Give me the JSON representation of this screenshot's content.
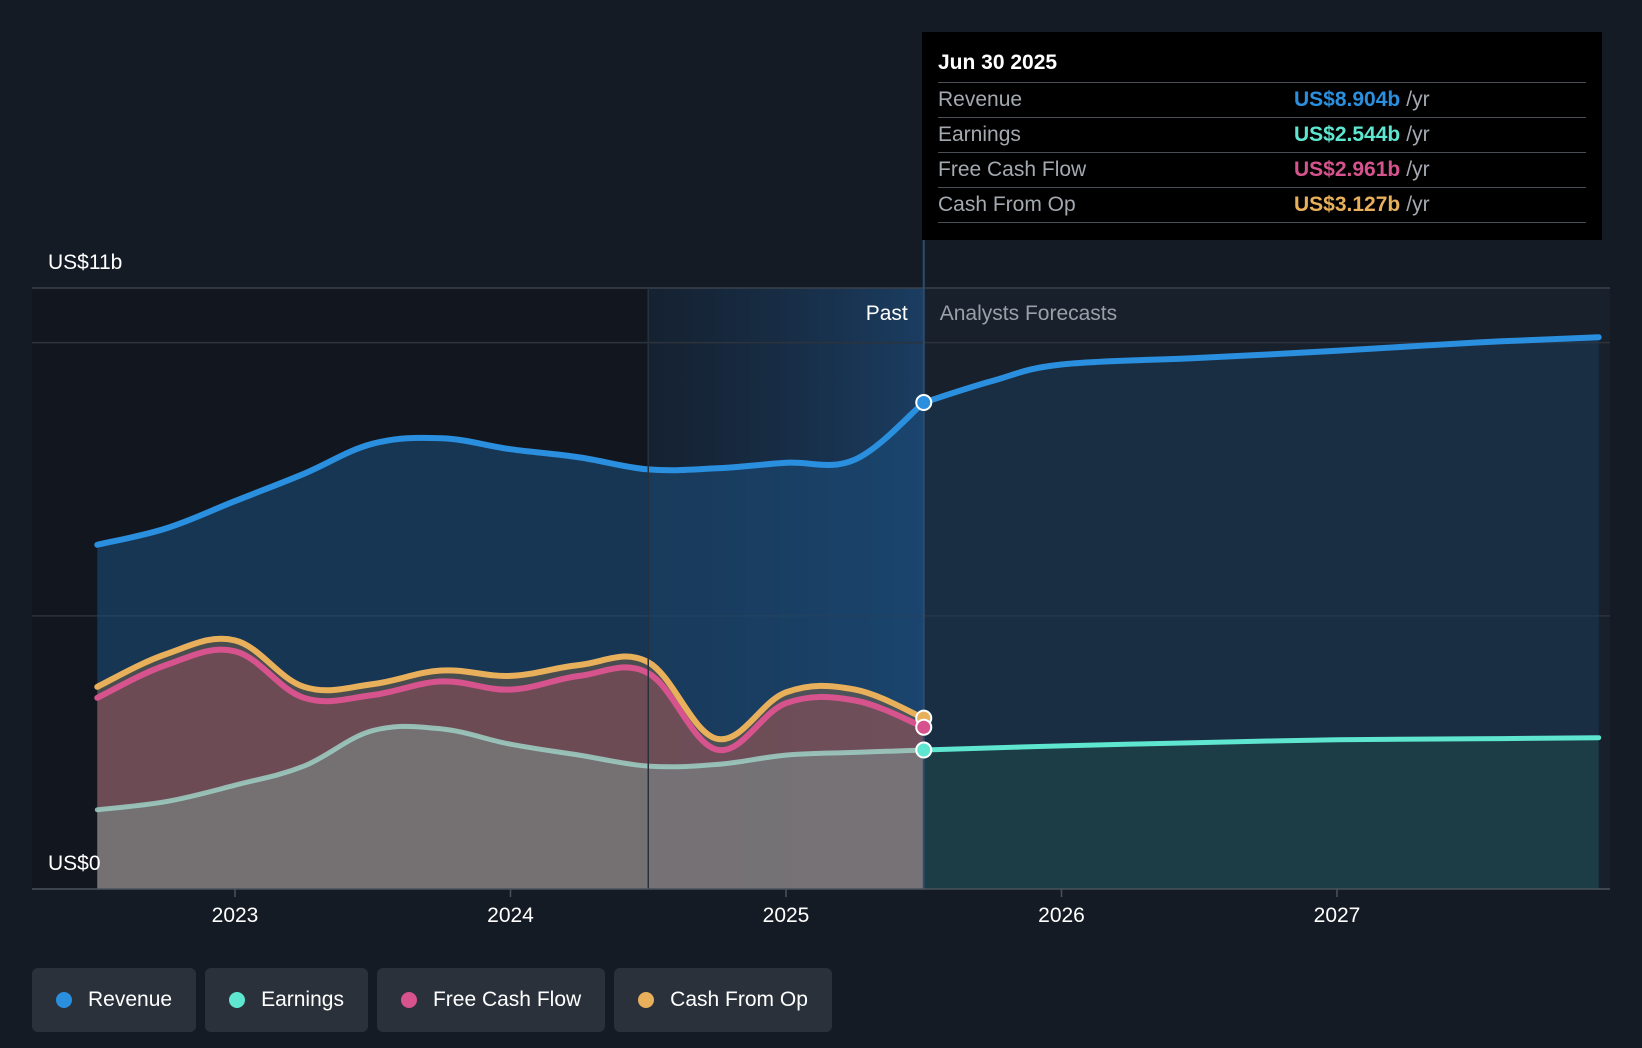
{
  "chart_data": {
    "type": "area",
    "title": "",
    "xlabel": "",
    "ylabel": "",
    "ylim": [
      0,
      11
    ],
    "y_unit": "US$ billions",
    "y_axis_labels": {
      "top": "US$11b",
      "bottom": "US$0"
    },
    "x_range": [
      2022.5,
      2027.95
    ],
    "x_ticks": [
      2023,
      2024,
      2025,
      2026,
      2027
    ],
    "x_tick_labels": [
      "2023",
      "2024",
      "2025",
      "2026",
      "2027"
    ],
    "divider_x": 2025.5,
    "highlight_start_x": 2024.5,
    "region_labels": {
      "past": "Past",
      "forecast": "Analysts Forecasts"
    },
    "legend_position": "bottom-left",
    "series": [
      {
        "name": "Revenue",
        "color": "#2a8fdf",
        "points": [
          [
            2022.5,
            6.3
          ],
          [
            2022.75,
            6.6
          ],
          [
            2023.0,
            7.1
          ],
          [
            2023.25,
            7.6
          ],
          [
            2023.5,
            8.15
          ],
          [
            2023.75,
            8.25
          ],
          [
            2024.0,
            8.05
          ],
          [
            2024.25,
            7.9
          ],
          [
            2024.5,
            7.68
          ],
          [
            2024.75,
            7.7
          ],
          [
            2025.0,
            7.8
          ],
          [
            2025.25,
            7.86
          ],
          [
            2025.5,
            8.904
          ]
        ]
      },
      {
        "name": "Earnings",
        "color": "#5ee6d0",
        "points": [
          [
            2022.5,
            1.45
          ],
          [
            2022.75,
            1.6
          ],
          [
            2023.0,
            1.9
          ],
          [
            2023.25,
            2.25
          ],
          [
            2023.5,
            2.9
          ],
          [
            2023.75,
            2.93
          ],
          [
            2024.0,
            2.65
          ],
          [
            2024.25,
            2.45
          ],
          [
            2024.5,
            2.25
          ],
          [
            2024.75,
            2.28
          ],
          [
            2025.0,
            2.45
          ],
          [
            2025.25,
            2.5
          ],
          [
            2025.5,
            2.544
          ]
        ]
      },
      {
        "name": "Free Cash Flow",
        "color": "#d6538e",
        "points": [
          [
            2022.5,
            3.5
          ],
          [
            2022.75,
            4.1
          ],
          [
            2023.0,
            4.35
          ],
          [
            2023.25,
            3.5
          ],
          [
            2023.5,
            3.55
          ],
          [
            2023.75,
            3.8
          ],
          [
            2024.0,
            3.65
          ],
          [
            2024.25,
            3.9
          ],
          [
            2024.5,
            3.95
          ],
          [
            2024.75,
            2.55
          ],
          [
            2025.0,
            3.4
          ],
          [
            2025.25,
            3.45
          ],
          [
            2025.5,
            2.961
          ]
        ]
      },
      {
        "name": "Cash From Op",
        "color": "#e8b05a",
        "points": [
          [
            2022.5,
            3.7
          ],
          [
            2022.75,
            4.3
          ],
          [
            2023.0,
            4.55
          ],
          [
            2023.25,
            3.7
          ],
          [
            2023.5,
            3.75
          ],
          [
            2023.75,
            4.0
          ],
          [
            2024.0,
            3.9
          ],
          [
            2024.25,
            4.1
          ],
          [
            2024.5,
            4.15
          ],
          [
            2024.75,
            2.75
          ],
          [
            2025.0,
            3.6
          ],
          [
            2025.25,
            3.65
          ],
          [
            2025.5,
            3.127
          ]
        ]
      }
    ],
    "forecasts": [
      {
        "name": "Revenue",
        "points": [
          [
            2025.5,
            8.904
          ],
          [
            2025.75,
            9.3
          ],
          [
            2026.0,
            9.6
          ],
          [
            2026.5,
            9.72
          ],
          [
            2027.0,
            9.85
          ],
          [
            2027.5,
            10.0
          ],
          [
            2027.95,
            10.1
          ]
        ]
      },
      {
        "name": "Earnings",
        "points": [
          [
            2025.5,
            2.544
          ],
          [
            2026.0,
            2.62
          ],
          [
            2026.5,
            2.68
          ],
          [
            2027.0,
            2.73
          ],
          [
            2027.5,
            2.75
          ],
          [
            2027.95,
            2.77
          ]
        ]
      }
    ]
  },
  "tooltip": {
    "date": "Jun 30 2025",
    "unit": "/yr",
    "rows": [
      {
        "label": "Revenue",
        "value": "US$8.904b",
        "color": "#2a8fdf"
      },
      {
        "label": "Earnings",
        "value": "US$2.544b",
        "color": "#5ee6d0"
      },
      {
        "label": "Free Cash Flow",
        "value": "US$2.961b",
        "color": "#d6538e"
      },
      {
        "label": "Cash From Op",
        "value": "US$3.127b",
        "color": "#e8b05a"
      }
    ]
  },
  "legend": [
    {
      "label": "Revenue",
      "color": "#2a8fdf"
    },
    {
      "label": "Earnings",
      "color": "#5ee6d0"
    },
    {
      "label": "Free Cash Flow",
      "color": "#d6538e"
    },
    {
      "label": "Cash From Op",
      "color": "#e8b05a"
    }
  ]
}
